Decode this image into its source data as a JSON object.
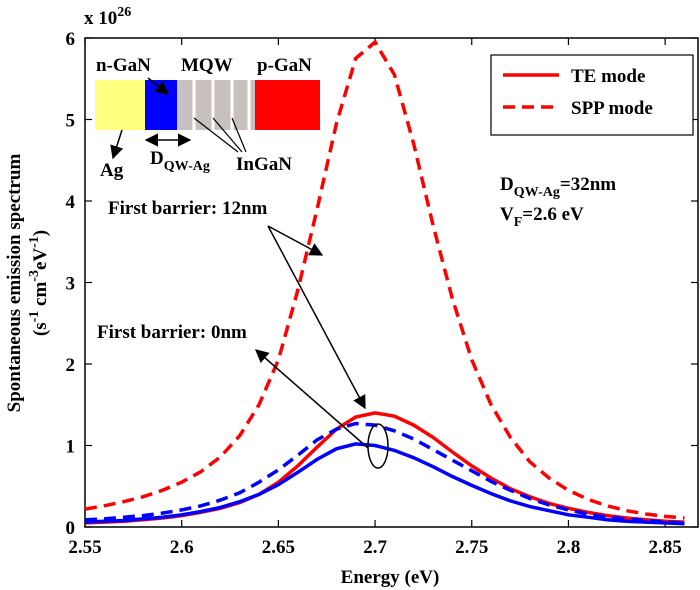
{
  "chart_data": {
    "type": "line",
    "multiplier": [
      "x 10",
      "26"
    ],
    "xlabel": "Energy (eV)",
    "ylabel": "Spontaneous emission spectrum",
    "ylabel_units": [
      "(s",
      "-1",
      " cm",
      "-3",
      "eV",
      "-1",
      ")"
    ],
    "xlim": [
      2.55,
      2.867
    ],
    "ylim": [
      0,
      6
    ],
    "xticks": [
      2.55,
      2.6,
      2.65,
      2.7,
      2.75,
      2.8,
      2.85
    ],
    "yticks": [
      0,
      1,
      2,
      3,
      4,
      5,
      6
    ],
    "legend_position": "upper right",
    "x": [
      2.55,
      2.56,
      2.57,
      2.58,
      2.59,
      2.6,
      2.61,
      2.62,
      2.63,
      2.64,
      2.65,
      2.66,
      2.67,
      2.68,
      2.69,
      2.7,
      2.71,
      2.72,
      2.73,
      2.74,
      2.75,
      2.76,
      2.77,
      2.78,
      2.79,
      2.8,
      2.81,
      2.82,
      2.83,
      2.84,
      2.85,
      2.86
    ],
    "series": [
      {
        "name": "TE mode",
        "color": "#ff0000",
        "linestyle": "solid",
        "values": [
          0.05,
          0.06,
          0.07,
          0.09,
          0.11,
          0.14,
          0.18,
          0.23,
          0.3,
          0.4,
          0.55,
          0.75,
          0.98,
          1.2,
          1.35,
          1.4,
          1.36,
          1.25,
          1.1,
          0.92,
          0.75,
          0.6,
          0.47,
          0.37,
          0.29,
          0.23,
          0.18,
          0.14,
          0.11,
          0.09,
          0.07,
          0.06
        ]
      },
      {
        "name": "SPP mode",
        "color": "#ff0000",
        "linestyle": "dashed",
        "values": [
          0.22,
          0.26,
          0.31,
          0.37,
          0.45,
          0.55,
          0.68,
          0.86,
          1.12,
          1.5,
          2.05,
          2.9,
          3.9,
          4.95,
          5.75,
          5.95,
          5.55,
          4.7,
          3.7,
          2.8,
          2.05,
          1.5,
          1.1,
          0.8,
          0.6,
          0.45,
          0.34,
          0.26,
          0.2,
          0.16,
          0.13,
          0.11
        ]
      },
      {
        "color": "#0000ff",
        "linestyle": "solid",
        "values": [
          0.06,
          0.07,
          0.08,
          0.1,
          0.12,
          0.15,
          0.19,
          0.24,
          0.31,
          0.4,
          0.52,
          0.67,
          0.83,
          0.96,
          1.02,
          1.0,
          0.94,
          0.85,
          0.74,
          0.62,
          0.51,
          0.41,
          0.32,
          0.25,
          0.2,
          0.15,
          0.12,
          0.09,
          0.07,
          0.06,
          0.05,
          0.04
        ]
      },
      {
        "color": "#0000ff",
        "linestyle": "dashed",
        "values": [
          0.09,
          0.1,
          0.12,
          0.14,
          0.17,
          0.21,
          0.26,
          0.33,
          0.42,
          0.55,
          0.7,
          0.88,
          1.07,
          1.2,
          1.27,
          1.25,
          1.18,
          1.08,
          0.95,
          0.82,
          0.69,
          0.56,
          0.45,
          0.35,
          0.27,
          0.21,
          0.16,
          0.12,
          0.1,
          0.08,
          0.06,
          0.05
        ]
      }
    ],
    "annotations": [
      "First barrier: 12nm",
      "First barrier: 0nm",
      [
        "D",
        "QW-Ag",
        "=32nm"
      ],
      [
        "V",
        "F",
        "=2.6 eV"
      ]
    ],
    "inset": {
      "labels": [
        "n-GaN",
        "MQW",
        "p-GaN",
        "Ag",
        "InGaN"
      ],
      "distance": [
        "D",
        "QW-Ag"
      ]
    }
  }
}
